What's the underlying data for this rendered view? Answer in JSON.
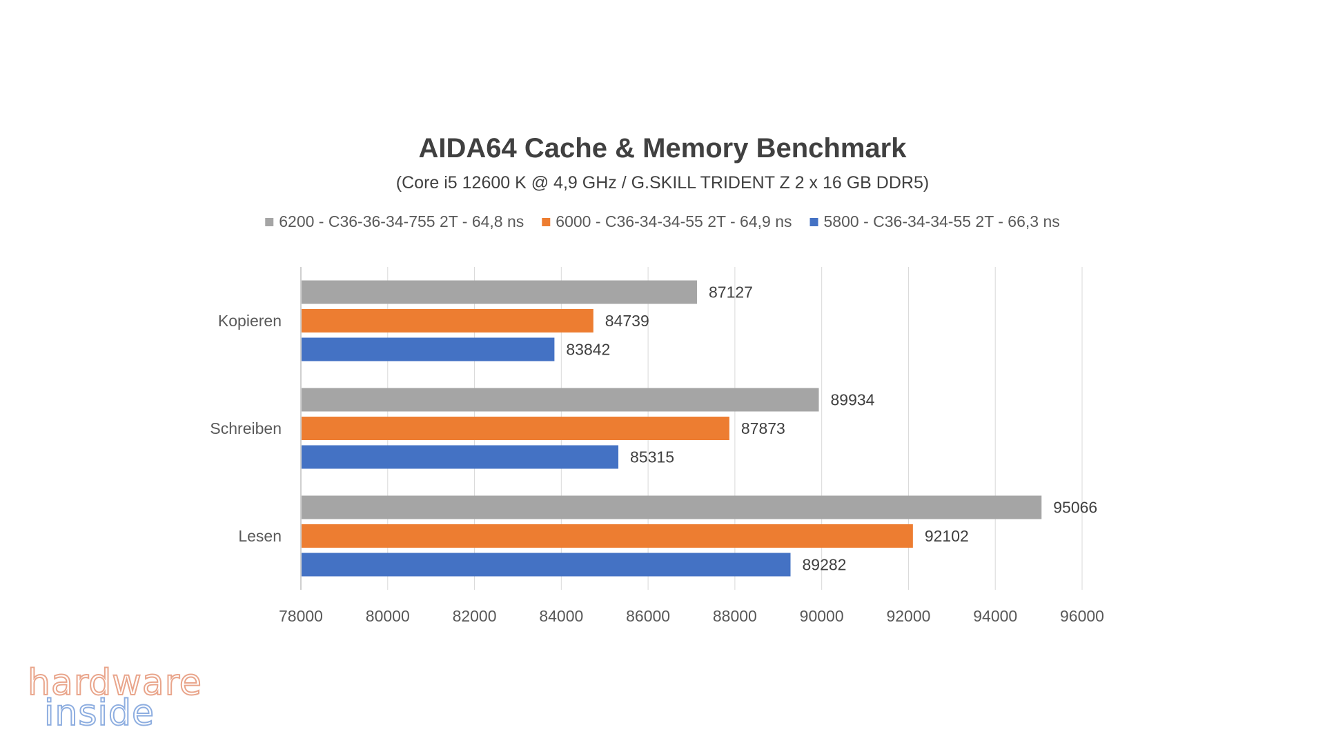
{
  "chart_data": {
    "type": "bar",
    "orientation": "horizontal",
    "title": "AIDA64 Cache & Memory Benchmark",
    "subtitle": "(Core i5 12600 K @ 4,9 GHz / G.SKILL TRIDENT Z 2 x 16 GB DDR5)",
    "categories": [
      "Kopieren",
      "Schreiben",
      "Lesen"
    ],
    "series": [
      {
        "name": "6200 - C36-36-34-755 2T - 64,8 ns",
        "color": "#a5a5a5",
        "values": [
          87127,
          89934,
          95066
        ]
      },
      {
        "name": "6000 - C36-34-34-55 2T - 64,9 ns",
        "color": "#ed7d31",
        "values": [
          84739,
          87873,
          92102
        ]
      },
      {
        "name": "5800 - C36-34-34-55 2T - 66,3 ns",
        "color": "#4472c4",
        "values": [
          83842,
          85315,
          89282
        ]
      }
    ],
    "xlim": [
      78000,
      96000
    ],
    "xticks": [
      "78000",
      "80000",
      "82000",
      "84000",
      "86000",
      "88000",
      "90000",
      "92000",
      "94000",
      "96000"
    ],
    "grid": true,
    "legend_position": "top"
  },
  "watermark": {
    "line1": "hardware",
    "line2": "inside"
  }
}
